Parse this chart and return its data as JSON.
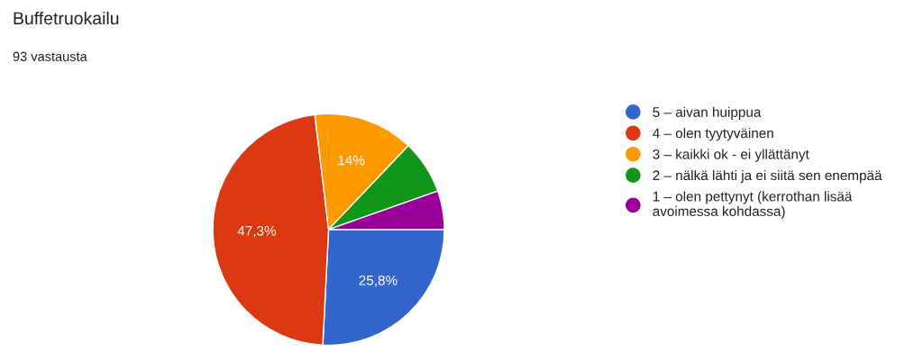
{
  "chart_data": {
    "type": "pie",
    "title": "Buffetruokailu",
    "subtitle": "93 vastausta",
    "categories": [
      "5 – aivan huippua",
      "4 – olen tyytyväinen",
      "3 – kaikki ok - ei yllättänyt",
      "2 – nälkä lähti ja ei siitä sen enempää",
      "1 – olen pettynyt (kerrothan lisää\navoimessa kohdassa)"
    ],
    "values": [
      25.8,
      47.3,
      14,
      7.5,
      5.4
    ],
    "colors": [
      "#3366cc",
      "#dc3912",
      "#ff9900",
      "#109618",
      "#990099"
    ],
    "value_labels": [
      "25,8%",
      "47,3%",
      "14%",
      null,
      null
    ],
    "legend": "right"
  }
}
